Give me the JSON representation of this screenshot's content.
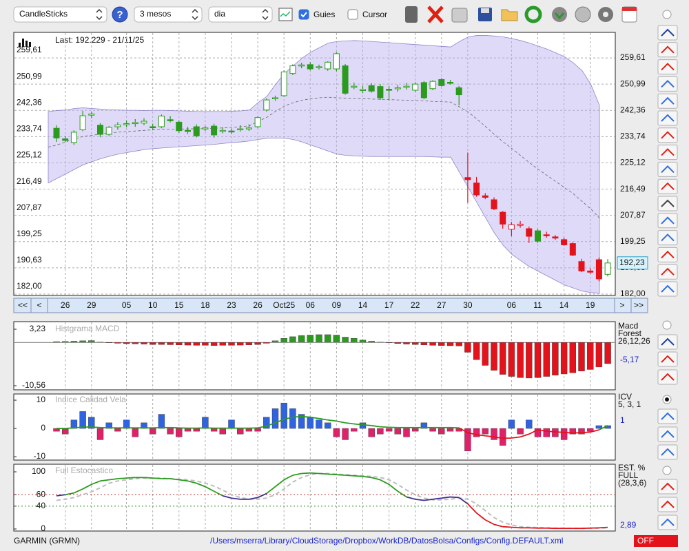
{
  "toolbar": {
    "chart_type": "CandleSticks",
    "help": "?",
    "period": "3 mesos",
    "interval": "dia",
    "guides": "Guies",
    "guides_checked": true,
    "cursor": "Cursor",
    "cursor_checked": false
  },
  "status": {
    "symbol": "GARMIN (GRMN)",
    "path": "/Users/mserra/Library/CloudStorage/Dropbox/WorkDB/DatosBolsa/Configs/Config.DEFAULT.xml",
    "toggle": "OFF"
  },
  "chart_data": [
    {
      "type": "candlestick",
      "info": "Last: 192.229 - 21/11/25",
      "last_label": "192,23",
      "nav": [
        "<<",
        "<",
        ">",
        ">>"
      ],
      "categories": [
        null,
        "26",
        null,
        null,
        "29",
        null,
        null,
        null,
        "05",
        null,
        null,
        "10",
        null,
        null,
        "15",
        null,
        null,
        "18",
        null,
        null,
        "23",
        null,
        null,
        "26",
        null,
        null,
        "Oct25",
        null,
        null,
        "06",
        null,
        null,
        "09",
        null,
        null,
        "14",
        null,
        null,
        "17",
        null,
        null,
        "22",
        null,
        null,
        "27",
        null,
        null,
        "30",
        null,
        null,
        null,
        null,
        "06",
        null,
        null,
        "11",
        null,
        null,
        "14",
        null,
        null,
        "19",
        null,
        null
      ],
      "open": [
        236.5,
        233,
        231.8,
        236,
        240.8,
        237.5,
        234.5,
        237,
        237.8,
        238,
        238.2,
        237,
        237,
        239.3,
        238.5,
        235.8,
        237,
        236.4,
        237.2,
        235.5,
        235.6,
        236,
        236.3,
        237,
        242.5,
        246.3,
        247.2,
        254.5,
        257,
        257.4,
        256.5,
        256,
        256,
        257,
        250,
        249,
        250.5,
        250.2,
        249.3,
        249.5,
        250.2,
        249,
        251.5,
        249.5,
        252.5,
        251.6,
        249.8,
        220.3,
        218.5,
        214.3,
        213,
        208.9,
        203.3,
        204.6,
        203.5,
        202.8,
        201.5,
        200.8,
        199.9,
        198.6,
        192.7,
        189.6,
        193.3,
        188.5
      ],
      "high": [
        237.5,
        234,
        235.8,
        242.2,
        242,
        238.2,
        237.2,
        238.5,
        239,
        239.5,
        239.8,
        238,
        241,
        240.5,
        239,
        237,
        237.8,
        237.3,
        238,
        236.8,
        236.4,
        237.5,
        237.8,
        240.5,
        246.3,
        247.2,
        255.5,
        257.5,
        258,
        258.2,
        257.4,
        258.5,
        261.5,
        257.6,
        251.5,
        250.5,
        251.3,
        251,
        250.4,
        250.8,
        251.4,
        251.6,
        252,
        252.3,
        253,
        252.4,
        250.4,
        228.5,
        220.5,
        215.2,
        213.8,
        209.3,
        205.7,
        206,
        204.2,
        203.5,
        202.5,
        201.4,
        200.6,
        199,
        193.6,
        190.5,
        194,
        193.5
      ],
      "low": [
        232,
        232,
        231,
        235.5,
        239.8,
        233.5,
        234,
        236,
        236.8,
        237,
        237.5,
        235.8,
        236.5,
        238.4,
        235,
        234.6,
        233.5,
        235.5,
        233.4,
        234.8,
        234.6,
        235.4,
        235.6,
        236.5,
        242,
        245.5,
        246.8,
        254,
        256.2,
        255.5,
        255.8,
        255.4,
        255.2,
        247.5,
        249.3,
        248,
        248.2,
        245.8,
        245.6,
        248.5,
        249.2,
        248.5,
        246,
        249,
        250.2,
        250.8,
        244,
        212,
        214,
        213.2,
        209.6,
        203.5,
        201,
        203.8,
        198.8,
        198.8,
        200.5,
        199.8,
        197.9,
        194.5,
        189.2,
        188.6,
        186.2,
        187.8
      ],
      "close": [
        233.3,
        232.5,
        235.2,
        240.6,
        241.2,
        234.5,
        236.8,
        237.6,
        238,
        238.4,
        238.8,
        236.8,
        240.5,
        239,
        235.7,
        235.5,
        234,
        236.6,
        234.3,
        235.8,
        235.3,
        236.3,
        236.6,
        240,
        245.8,
        246.5,
        255,
        257,
        257.3,
        256,
        256.7,
        258.2,
        261,
        248,
        250.3,
        249.2,
        248.7,
        246.5,
        249,
        249.8,
        250.3,
        251,
        246.5,
        251.9,
        250.5,
        251.4,
        247.5,
        219.6,
        214.6,
        213.8,
        210,
        205,
        204.8,
        205,
        201,
        199.4,
        201.2,
        200.4,
        198.2,
        194.8,
        189.6,
        189.2,
        187,
        192.23
      ],
      "colors": [
        "#2b9a1f",
        "#2b9a1f",
        "#2b9a1f",
        "#2b9a1f",
        "#2b9a1f",
        "#2b9a1f",
        "#2b9a1f",
        "#2b9a1f",
        "#2b9a1f",
        "#2b9a1f",
        "#2b9a1f",
        "#2b9a1f",
        "#2b9a1f",
        "#2b9a1f",
        "#2b9a1f",
        "#2b9a1f",
        "#2b9a1f",
        "#2b9a1f",
        "#2b9a1f",
        "#2b9a1f",
        "#2b9a1f",
        "#2b9a1f",
        "#2b9a1f",
        "#2b9a1f",
        "#2b9a1f",
        "#2b9a1f",
        "#2b9a1f",
        "#2b9a1f",
        "#2b9a1f",
        "#2b9a1f",
        "#2b9a1f",
        "#2b9a1f",
        "#2b9a1f",
        "#2b9a1f",
        "#2b9a1f",
        "#2b9a1f",
        "#2b9a1f",
        "#2b9a1f",
        "#2b9a1f",
        "#2b9a1f",
        "#2b9a1f",
        "#2b9a1f",
        "#2b9a1f",
        "#2b9a1f",
        "#2b9a1f",
        "#2b9a1f",
        "#2b9a1f",
        "#e3121b",
        "#e3121b",
        "#e3121b",
        "#e3121b",
        "#e3121b",
        "#e3121b",
        "#e3121b",
        "#e3121b",
        "#2b9a1f",
        "#e3121b",
        "#e3121b",
        "#e3121b",
        "#e3121b",
        "#e3121b",
        "#e3121b",
        "#e3121b",
        "#2b9a1f"
      ],
      "bands": {
        "fill": "#b7aef0",
        "line_color": "#8f86c8",
        "upper": [
          242,
          242.3,
          242.5,
          243,
          243.2,
          243,
          242.8,
          242.6,
          242.5,
          242.4,
          242.4,
          242.3,
          242.4,
          242.4,
          242.3,
          242.2,
          242.1,
          242,
          242,
          242,
          242,
          242.1,
          242.2,
          242.5,
          245,
          247,
          251,
          254.5,
          257,
          259.5,
          261.5,
          263,
          264.5,
          265,
          265.2,
          265.3,
          265.2,
          265,
          264.8,
          264.6,
          264.4,
          264.2,
          264,
          263.8,
          263.6,
          263.4,
          263.2,
          265,
          266.5,
          267,
          267,
          266.8,
          266.5,
          266,
          265.3,
          264.5,
          263.5,
          262.5,
          261.3,
          260,
          258,
          255.5,
          251,
          244
        ],
        "middle": [
          230.3,
          231,
          232,
          233,
          233.8,
          234.2,
          234.6,
          235,
          235.2,
          235.4,
          235.6,
          235.8,
          236,
          236.2,
          236.2,
          236.2,
          236.3,
          236.3,
          236.4,
          236.5,
          236.6,
          236.8,
          237,
          237.3,
          238.8,
          240.1,
          242.1,
          243.8,
          244.9,
          245.7,
          246.2,
          246.5,
          246.7,
          246.5,
          246.4,
          246.3,
          246.2,
          246.1,
          246,
          245.9,
          245.8,
          245.7,
          245.6,
          245.5,
          245.3,
          245.2,
          245.1,
          243.5,
          241.8,
          239.5,
          237,
          234.4,
          232,
          229.8,
          227.5,
          225.2,
          223,
          221,
          219,
          217,
          215,
          212.5,
          210,
          207
        ],
        "lower": [
          218.5,
          220,
          221.5,
          223,
          224.5,
          225.5,
          226.5,
          227.3,
          228,
          228.5,
          229,
          229.5,
          229.8,
          230,
          230.2,
          230.4,
          230.6,
          230.8,
          231,
          231.2,
          231.5,
          231.8,
          232,
          232.3,
          232.8,
          233.2,
          233.3,
          233.2,
          232.8,
          232,
          231,
          230,
          229,
          228,
          227.6,
          227.4,
          227.3,
          227.2,
          227.2,
          227.2,
          227.2,
          227.2,
          227.2,
          227.2,
          227.1,
          227,
          227,
          222,
          217,
          212,
          207,
          202,
          198,
          195,
          193,
          191,
          189.5,
          188,
          186.5,
          185,
          184,
          183,
          182.5,
          182.3
        ]
      },
      "ylim": [
        181.55,
        268
      ],
      "yticks": [
        {
          "value": 182,
          "label": "182,00"
        },
        {
          "value": 190.63,
          "label": "190,63"
        },
        {
          "value": 199.25,
          "label": "199,25"
        },
        {
          "value": 207.87,
          "label": "207,87"
        },
        {
          "value": 216.49,
          "label": "216,49"
        },
        {
          "value": 225.12,
          "label": "225,12"
        },
        {
          "value": 233.74,
          "label": "233,74"
        },
        {
          "value": 242.36,
          "label": "242,36"
        },
        {
          "value": 250.99,
          "label": "250,99"
        },
        {
          "value": 259.61,
          "label": "259,61"
        }
      ],
      "grid": true
    },
    {
      "type": "histogram_macd",
      "title": "Histgrama MACD",
      "legend": [
        "Macd",
        "Forest"
      ],
      "params": "26,12,26",
      "last_label": "-5,17",
      "values": [
        0.2,
        0.25,
        0.3,
        0.4,
        0.45,
        0.1,
        -0.1,
        -0.2,
        -0.3,
        -0.35,
        -0.4,
        -0.5,
        -0.5,
        -0.55,
        -0.6,
        -0.65,
        -0.7,
        -0.7,
        -0.75,
        -0.7,
        -0.7,
        -0.65,
        -0.6,
        -0.5,
        -0.2,
        0.4,
        1,
        1.4,
        1.7,
        1.8,
        1.9,
        1.9,
        1.8,
        1.3,
        1,
        0.6,
        0.3,
        0.1,
        -0.1,
        -0.25,
        -0.4,
        -0.5,
        -0.6,
        -0.7,
        -0.75,
        -0.8,
        -0.85,
        -2.4,
        -4.2,
        -5.6,
        -6.8,
        -7.8,
        -8.3,
        -8.6,
        -8.7,
        -8.6,
        -8.3,
        -8,
        -7.7,
        -7.4,
        -7,
        -6.6,
        -6,
        -5.17
      ],
      "pos_color": "#2b9a1f",
      "neg_color": "#e3121b",
      "ylim": [
        -11.57,
        5.08
      ],
      "yticks": [
        {
          "value": 3.23,
          "label": "3,23"
        },
        {
          "value": -10.56,
          "label": "-10,56"
        }
      ]
    },
    {
      "type": "bar_line",
      "title": "Indice Calidad Vela",
      "legend": "ICV",
      "params": "5, 3, 1",
      "last_label": "1",
      "bars": [
        -1,
        -2,
        3,
        6,
        4,
        -4,
        2,
        -1,
        3,
        -3,
        2,
        -2,
        5,
        -2,
        -3,
        -1,
        -1,
        4,
        -1,
        -2,
        3,
        -2,
        -1,
        -1,
        4,
        7,
        9,
        7,
        5,
        4,
        3,
        2,
        -3,
        -4,
        -1,
        2,
        -3,
        -2,
        -1,
        -2,
        -3,
        -1,
        2,
        -1,
        -2,
        -1,
        -1,
        -8,
        -3,
        -2,
        -4,
        -6,
        3,
        -2,
        3,
        -3,
        -3,
        -3,
        -4,
        -2,
        -2,
        -1,
        1,
        1
      ],
      "line": [
        0,
        0,
        0.2,
        0.5,
        0.5,
        0.3,
        0.2,
        0.2,
        0.2,
        0.2,
        0.2,
        0.2,
        0.3,
        0.3,
        0.2,
        0.1,
        0.1,
        0.2,
        0.1,
        0.1,
        0.1,
        0.1,
        0.1,
        0.2,
        0.8,
        2,
        3.2,
        4,
        4.2,
        4,
        3.5,
        3,
        2.6,
        2,
        1.6,
        1.3,
        1,
        0.6,
        0.4,
        0.3,
        0.3,
        0.3,
        0.3,
        0.3,
        0.3,
        0.3,
        0.2,
        -1.5,
        -2.2,
        -2.6,
        -3,
        -3.5,
        -3.4,
        -3,
        -2,
        -0.5,
        -1,
        -1.2,
        -1.4,
        -1.6,
        -1.5,
        -1.3,
        -0.5,
        1
      ],
      "bar_pos_color": "#2f63e0",
      "bar_neg_color": "#e0206a",
      "line_pos_color": "#2b9a1f",
      "line_neg_color": "#e3121b",
      "ylim": [
        -11.2,
        12.2
      ],
      "yticks": [
        10,
        0,
        -10
      ]
    },
    {
      "type": "stochastic",
      "title": "Full Estocastico",
      "legend": [
        "EST. %",
        "FULL",
        "(28,3,6)"
      ],
      "last_label": "2,89",
      "k": [
        58,
        60,
        63,
        70,
        78,
        84,
        86,
        88,
        89,
        90,
        90,
        89,
        88,
        88,
        86,
        84,
        80,
        74,
        66,
        58,
        54,
        52,
        52,
        55,
        62,
        74,
        86,
        94,
        97,
        98,
        97,
        96,
        95,
        94,
        93,
        92,
        90,
        86,
        78,
        66,
        56,
        52,
        50,
        52,
        54,
        56,
        55,
        44,
        28,
        16,
        8,
        4,
        3,
        2,
        2,
        1.5,
        1.5,
        1,
        1,
        1,
        1,
        1.5,
        2,
        2.89
      ],
      "d": [
        50,
        52,
        55,
        60,
        65,
        72,
        80,
        84,
        86,
        88,
        89,
        89,
        89,
        88,
        87,
        86,
        84,
        80,
        75,
        68,
        60,
        55,
        52,
        52,
        54,
        60,
        70,
        82,
        90,
        95,
        97,
        97,
        96,
        95,
        94,
        93,
        92,
        90,
        86,
        78,
        68,
        60,
        54,
        51,
        51,
        52,
        54,
        52,
        44,
        32,
        20,
        12,
        7,
        4,
        3,
        2.5,
        2,
        1.5,
        1.3,
        1.2,
        1,
        1.1,
        1.4,
        1.9
      ],
      "zone_colors": [
        "#2b9a1f",
        "#3b2f8f",
        "#e3121b"
      ],
      "d_color": "#bdbdbd",
      "hlines": [
        60,
        40
      ],
      "hline_colors": [
        "#c03030",
        "#2e8a2e"
      ],
      "ylim": [
        -3.6,
        113.3
      ],
      "yticks": [
        100,
        60,
        40,
        0
      ]
    }
  ]
}
